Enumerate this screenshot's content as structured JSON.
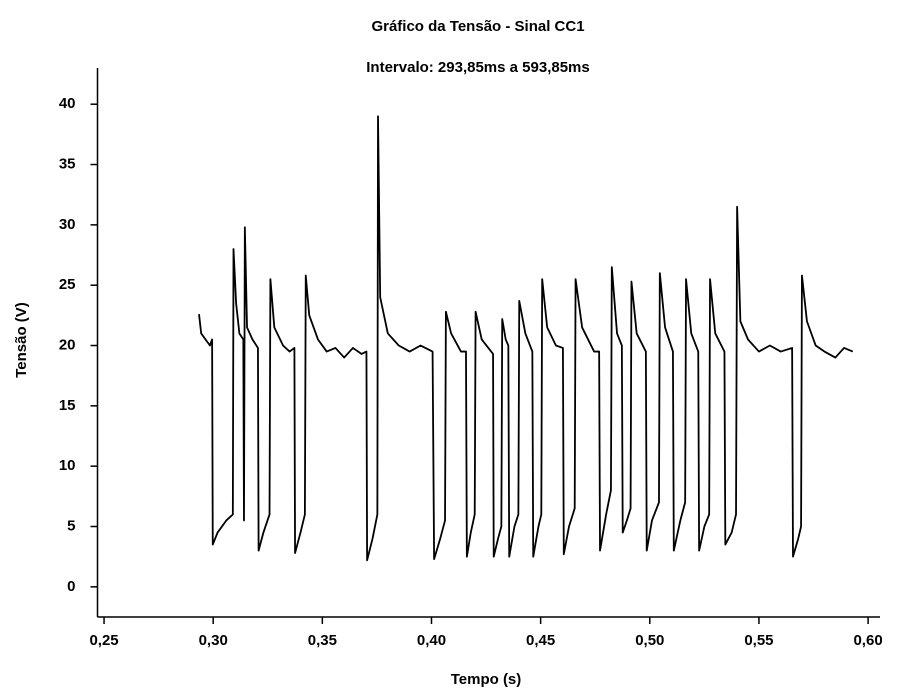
{
  "chart_data": {
    "type": "line",
    "title": "Gráfico da Tensão  -  Sinal CC1",
    "subtitle": "Intervalo: 293,85ms  a  593,85ms",
    "x_label": "Tempo (s)",
    "y_label": "Tensão (V)",
    "xlim": [
      0.247,
      0.605
    ],
    "ylim": [
      -2.5,
      43
    ],
    "xticks": [
      {
        "value": 0.25,
        "label": "0,25"
      },
      {
        "value": 0.3,
        "label": "0,30"
      },
      {
        "value": 0.35,
        "label": "0,35"
      },
      {
        "value": 0.4,
        "label": "0,40"
      },
      {
        "value": 0.45,
        "label": "0,45"
      },
      {
        "value": 0.5,
        "label": "0,50"
      },
      {
        "value": 0.55,
        "label": "0,55"
      },
      {
        "value": 0.6,
        "label": "0,60"
      }
    ],
    "yticks": [
      0,
      5,
      10,
      15,
      20,
      25,
      30,
      35,
      40
    ],
    "grid": false,
    "color": "#000000",
    "x": [
      0.2935,
      0.2945,
      0.2965,
      0.2985,
      0.2995,
      0.2998,
      0.302,
      0.306,
      0.309,
      0.3093,
      0.3105,
      0.312,
      0.3138,
      0.3141,
      0.3145,
      0.3155,
      0.318,
      0.3205,
      0.3208,
      0.323,
      0.3258,
      0.3262,
      0.328,
      0.332,
      0.335,
      0.3372,
      0.3375,
      0.34,
      0.342,
      0.3424,
      0.344,
      0.348,
      0.352,
      0.356,
      0.36,
      0.364,
      0.368,
      0.3702,
      0.3705,
      0.373,
      0.3752,
      0.3755,
      0.3765,
      0.38,
      0.385,
      0.39,
      0.395,
      0.4005,
      0.4012,
      0.404,
      0.4062,
      0.4066,
      0.409,
      0.4135,
      0.4158,
      0.4162,
      0.418,
      0.4198,
      0.4202,
      0.423,
      0.4282,
      0.4285,
      0.4305,
      0.432,
      0.4324,
      0.434,
      0.4352,
      0.4356,
      0.438,
      0.4398,
      0.4402,
      0.443,
      0.4462,
      0.4466,
      0.449,
      0.4503,
      0.4507,
      0.453,
      0.457,
      0.4602,
      0.4606,
      0.463,
      0.4656,
      0.466,
      0.469,
      0.4745,
      0.4768,
      0.4772,
      0.48,
      0.4822,
      0.4826,
      0.485,
      0.4872,
      0.4876,
      0.4895,
      0.4912,
      0.4916,
      0.494,
      0.4982,
      0.4986,
      0.501,
      0.5042,
      0.5046,
      0.507,
      0.5106,
      0.511,
      0.514,
      0.5162,
      0.5166,
      0.519,
      0.5222,
      0.5226,
      0.525,
      0.5272,
      0.5276,
      0.53,
      0.5342,
      0.5346,
      0.5375,
      0.5395,
      0.54,
      0.5415,
      0.545,
      0.55,
      0.555,
      0.56,
      0.5652,
      0.5656,
      0.568,
      0.5693,
      0.5697,
      0.572,
      0.576,
      0.58,
      0.585,
      0.589,
      0.593
    ],
    "values": [
      22.6,
      21,
      20.5,
      20,
      20.5,
      3.5,
      4.5,
      5.5,
      6,
      28,
      23.5,
      21,
      20.5,
      5.5,
      29.8,
      21.5,
      20.5,
      19.8,
      3,
      4.5,
      6,
      25.5,
      21.5,
      20,
      19.5,
      19.8,
      2.8,
      4.5,
      6,
      25.8,
      22.5,
      20.5,
      19.5,
      19.8,
      19,
      19.8,
      19.3,
      19.5,
      2.2,
      4,
      6,
      39,
      24,
      21,
      20,
      19.5,
      20,
      19.5,
      2.3,
      4,
      5.5,
      22.8,
      21,
      19.5,
      19.5,
      2.5,
      4.5,
      6,
      22.8,
      20.5,
      19.3,
      2.5,
      4,
      5,
      22.2,
      20.5,
      20,
      2.5,
      5,
      6,
      23.7,
      21,
      19.5,
      2.5,
      5,
      6,
      25.5,
      21.5,
      20,
      19.8,
      2.7,
      5,
      6.5,
      25.5,
      21.5,
      19.5,
      19.5,
      3,
      6,
      8,
      26.5,
      21,
      20,
      4.5,
      5.5,
      6.5,
      25.3,
      21,
      19.5,
      3,
      5.5,
      7,
      26,
      21.5,
      19.5,
      3,
      5.5,
      7,
      25.5,
      21,
      19.5,
      3,
      5,
      6,
      25.5,
      21,
      19.5,
      3.5,
      4.5,
      6,
      31.5,
      22,
      20.5,
      19.5,
      20,
      19.5,
      19.8,
      2.5,
      4,
      5,
      25.8,
      22,
      20,
      19.5,
      19,
      19.8,
      19.5
    ]
  }
}
